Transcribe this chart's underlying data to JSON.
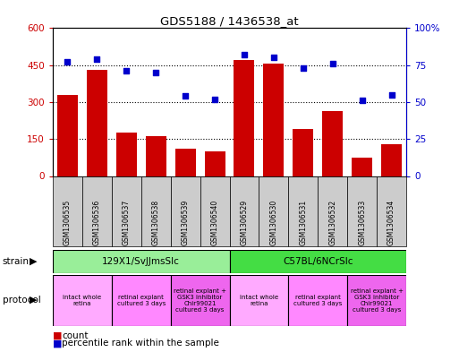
{
  "title": "GDS5188 / 1436538_at",
  "samples": [
    "GSM1306535",
    "GSM1306536",
    "GSM1306537",
    "GSM1306538",
    "GSM1306539",
    "GSM1306540",
    "GSM1306529",
    "GSM1306530",
    "GSM1306531",
    "GSM1306532",
    "GSM1306533",
    "GSM1306534"
  ],
  "counts": [
    330,
    430,
    175,
    160,
    110,
    100,
    470,
    455,
    190,
    265,
    75,
    130
  ],
  "percentiles": [
    77,
    79,
    71,
    70,
    54,
    52,
    82,
    80,
    73,
    76,
    51,
    55
  ],
  "ylim_left": [
    0,
    600
  ],
  "ylim_right": [
    0,
    100
  ],
  "yticks_left": [
    0,
    150,
    300,
    450,
    600
  ],
  "yticks_right": [
    0,
    25,
    50,
    75,
    100
  ],
  "ytick_labels_left": [
    "0",
    "150",
    "300",
    "450",
    "600"
  ],
  "ytick_labels_right": [
    "0",
    "25",
    "50",
    "75",
    "100%"
  ],
  "bar_color": "#cc0000",
  "dot_color": "#0000cc",
  "strain_groups": [
    {
      "label": "129X1/SvJJmsSlc",
      "start": 0,
      "end": 6,
      "color": "#99ee99"
    },
    {
      "label": "C57BL/6NCrSlc",
      "start": 6,
      "end": 12,
      "color": "#44dd44"
    }
  ],
  "protocol_groups": [
    {
      "label": "intact whole\nretina",
      "start": 0,
      "end": 2,
      "color": "#ffaaff"
    },
    {
      "label": "retinal explant\ncultured 3 days",
      "start": 2,
      "end": 4,
      "color": "#ff88ff"
    },
    {
      "label": "retinal explant +\nGSK3 inhibitor\nChir99021\ncultured 3 days",
      "start": 4,
      "end": 6,
      "color": "#ee66ee"
    },
    {
      "label": "intact whole\nretina",
      "start": 6,
      "end": 8,
      "color": "#ffaaff"
    },
    {
      "label": "retinal explant\ncultured 3 days",
      "start": 8,
      "end": 10,
      "color": "#ff88ff"
    },
    {
      "label": "retinal explant +\nGSK3 inhibitor\nChir99021\ncultured 3 days",
      "start": 10,
      "end": 12,
      "color": "#ee66ee"
    }
  ],
  "left_color": "#cc0000",
  "right_color": "#0000cc",
  "bg_color": "#ffffff",
  "plot_bg": "#ffffff",
  "tick_label_bg": "#cccccc"
}
